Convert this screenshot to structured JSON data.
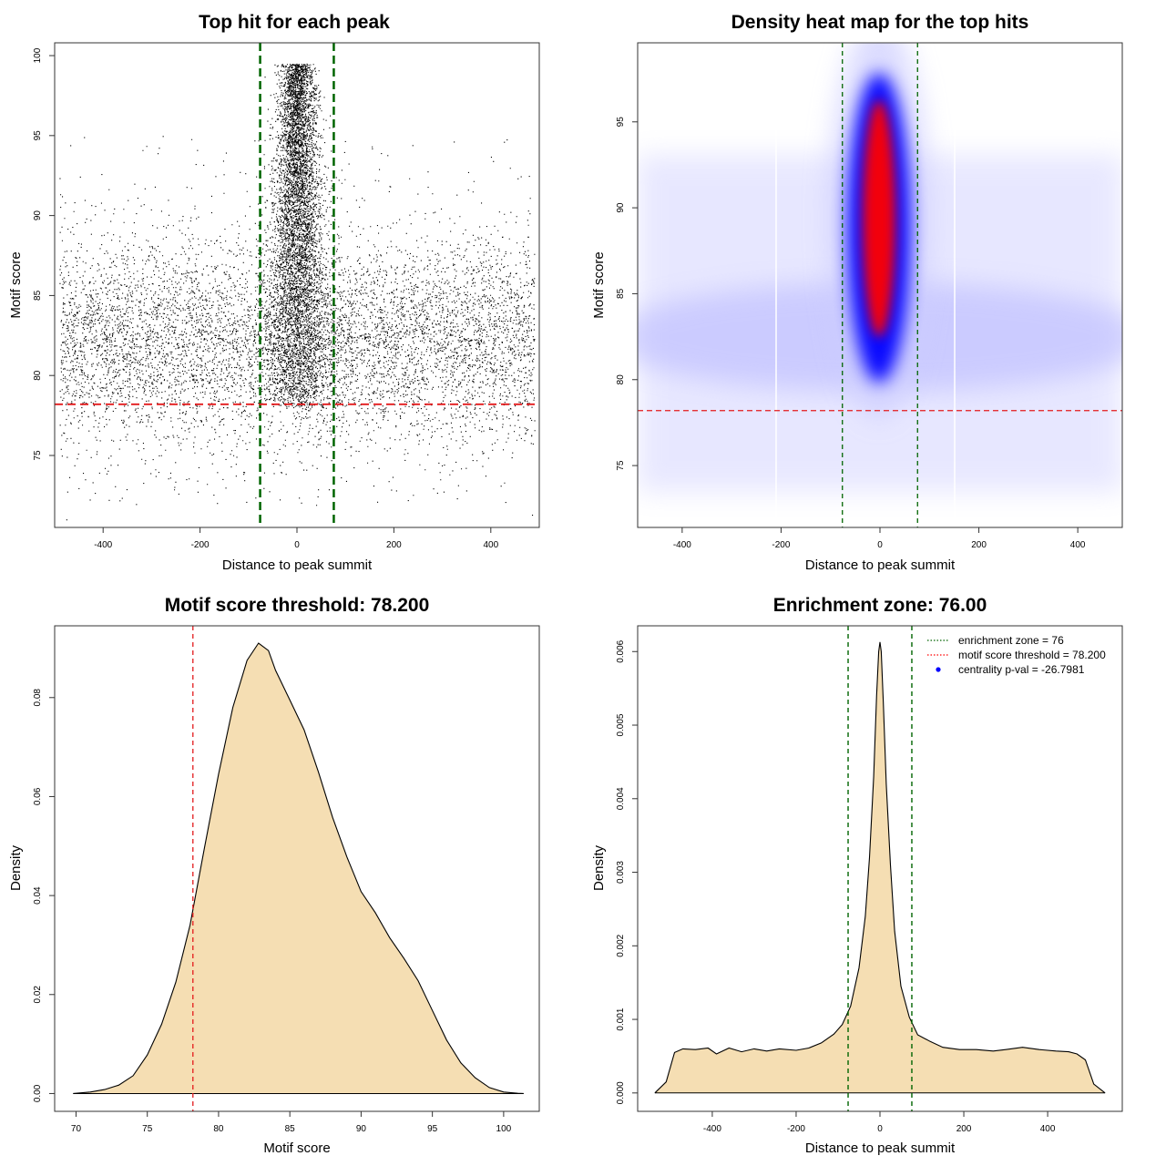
{
  "chart_data": [
    {
      "id": "scatter",
      "type": "scatter",
      "title": "Top hit for each peak",
      "xlabel": "Distance to peak summit",
      "ylabel": "Motif score",
      "xlim": [
        -500,
        500
      ],
      "ylim": [
        70.5,
        100.8
      ],
      "xticks": [
        -400,
        -200,
        0,
        200,
        400
      ],
      "yticks": [
        75,
        80,
        85,
        90,
        95,
        100
      ],
      "vlines": [
        -76,
        76
      ],
      "hline": 78.2,
      "n_background_points": 7200,
      "n_central_points": 6300,
      "x_range": [
        -490,
        490
      ],
      "central_sd": 30
    },
    {
      "id": "heatmap",
      "type": "heatmap",
      "title": "Density heat map for the top hits",
      "xlabel": "Distance to peak summit",
      "ylabel": "Motif score",
      "xlim": [
        -490,
        490
      ],
      "ylim": [
        71.4,
        99.6
      ],
      "xticks": [
        -400,
        -200,
        0,
        200,
        400
      ],
      "yticks": [
        75,
        80,
        85,
        90,
        95
      ],
      "vlines": [
        -76,
        76
      ],
      "hline": 78.2,
      "color_scale": [
        "#ffffff",
        "#0000ff",
        "#ff0000"
      ]
    },
    {
      "id": "score-density",
      "type": "area",
      "title": "Motif score threshold: 78.200",
      "xlabel": "Motif score",
      "ylabel": "Density",
      "xlim": [
        68.5,
        102.5
      ],
      "ylim": [
        -0.0036,
        0.0945
      ],
      "xticks": [
        70,
        75,
        80,
        85,
        90,
        95,
        100
      ],
      "yticks": [
        0.0,
        0.02,
        0.04,
        0.06,
        0.08
      ],
      "ytick_labels": [
        "0.00",
        "0.02",
        "0.04",
        "0.06",
        "0.08"
      ],
      "vline": 78.2,
      "x": [
        69.8,
        71,
        72,
        73,
        74,
        75,
        76,
        77,
        78,
        79,
        80,
        81,
        82,
        82.8,
        83.5,
        84,
        85,
        86,
        87,
        88,
        89,
        90,
        91,
        92,
        93,
        94,
        95,
        96,
        97,
        98,
        99,
        100,
        101,
        101.4
      ],
      "y": [
        0.0,
        0.0003,
        0.0008,
        0.0017,
        0.0036,
        0.0078,
        0.014,
        0.0225,
        0.034,
        0.0495,
        0.0645,
        0.078,
        0.0875,
        0.091,
        0.0895,
        0.0855,
        0.0795,
        0.0735,
        0.065,
        0.0558,
        0.0478,
        0.0408,
        0.0365,
        0.0315,
        0.0273,
        0.0228,
        0.0168,
        0.0108,
        0.0062,
        0.0032,
        0.0012,
        0.0003,
        5e-05,
        0.0
      ]
    },
    {
      "id": "distance-density",
      "type": "area",
      "title": "Enrichment zone: 76.00",
      "xlabel": "Distance to peak summit",
      "ylabel": "Density",
      "xlim": [
        -578,
        578
      ],
      "ylim": [
        -0.00025,
        0.00635
      ],
      "xticks": [
        -400,
        -200,
        0,
        200,
        400
      ],
      "yticks": [
        0.0,
        0.001,
        0.002,
        0.003,
        0.004,
        0.005,
        0.006
      ],
      "ytick_labels": [
        "0.000",
        "0.001",
        "0.002",
        "0.003",
        "0.004",
        "0.005",
        "0.006"
      ],
      "vlines": [
        -76,
        76
      ],
      "x": [
        -537,
        -510,
        -490,
        -470,
        -440,
        -410,
        -390,
        -360,
        -330,
        -300,
        -270,
        -240,
        -200,
        -170,
        -140,
        -110,
        -90,
        -70,
        -50,
        -35,
        -25,
        -15,
        -8,
        -3,
        0,
        3,
        8,
        15,
        25,
        35,
        50,
        70,
        90,
        120,
        150,
        190,
        230,
        270,
        300,
        340,
        380,
        420,
        450,
        470,
        490,
        510,
        537
      ],
      "y": [
        0.0,
        0.00015,
        0.00055,
        0.0006,
        0.00059,
        0.00061,
        0.00053,
        0.00061,
        0.00056,
        0.0006,
        0.00057,
        0.0006,
        0.00058,
        0.00061,
        0.00068,
        0.0008,
        0.00093,
        0.00118,
        0.0017,
        0.0024,
        0.0032,
        0.0043,
        0.0054,
        0.006,
        0.00613,
        0.006,
        0.0053,
        0.0042,
        0.0031,
        0.0022,
        0.00145,
        0.00103,
        0.00079,
        0.0007,
        0.00062,
        0.00059,
        0.00059,
        0.00057,
        0.00059,
        0.00062,
        0.00059,
        0.00057,
        0.00056,
        0.00053,
        0.00045,
        0.00012,
        0.0
      ],
      "legend": [
        {
          "label": "enrichment zone = 76",
          "color": "#006400",
          "kind": "dotted-line"
        },
        {
          "label": "motif score threshold = 78.200",
          "color": "#ff0000",
          "kind": "dotted-line"
        },
        {
          "label": "centrality p-val = -26.7981",
          "color": "#0000ff",
          "kind": "point"
        }
      ]
    }
  ]
}
